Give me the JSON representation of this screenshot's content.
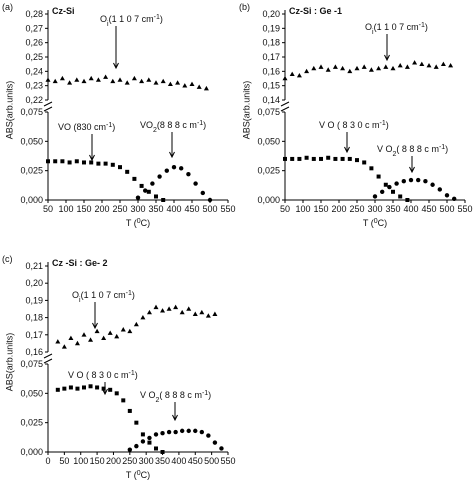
{
  "chart_data": [
    {
      "type": "scatter",
      "panel": "(a)",
      "title": "Cz-Si",
      "ylabel": "ABS(arb.units)",
      "xlabel": [
        {
          "text": "T ("
        },
        {
          "text": "0",
          "style": "sup"
        },
        {
          "text": "C)"
        }
      ],
      "xlim": [
        50,
        550
      ],
      "xticks": [
        50,
        100,
        150,
        200,
        250,
        300,
        350,
        400,
        450,
        500,
        550
      ],
      "ylim_upper": [
        0.22,
        0.28
      ],
      "yticks_upper": [
        {
          "value": 0.22,
          "label": "0,22"
        },
        {
          "value": 0.23,
          "label": "0,23"
        },
        {
          "value": 0.24,
          "label": "0,24"
        },
        {
          "value": 0.25,
          "label": "0,25"
        },
        {
          "value": 0.26,
          "label": "0,26"
        },
        {
          "value": 0.27,
          "label": "0,27"
        },
        {
          "value": 0.28,
          "label": "0,28"
        }
      ],
      "ylim": [
        0,
        0.075
      ],
      "yticks": [
        {
          "value": 0,
          "label": "0,000"
        },
        {
          "value": 0.025,
          "label": "0,025"
        },
        {
          "value": 0.05,
          "label": "0,050"
        },
        {
          "value": 0.075,
          "label": "0,075"
        }
      ],
      "series": [
        {
          "label": [
            {
              "text": "O"
            },
            {
              "text": "i",
              "style": "sub"
            },
            {
              "text": "(1 1 0 7 cm"
            },
            {
              "text": "-1",
              "style": "sup"
            },
            {
              "text": ")"
            }
          ],
          "marker": "triangle",
          "panel": "upper",
          "color": "#000000",
          "x": [
            50,
            70,
            90,
            110,
            130,
            150,
            170,
            190,
            210,
            230,
            250,
            270,
            290,
            310,
            330,
            350,
            370,
            390,
            410,
            430,
            450,
            470,
            490
          ],
          "values": [
            0.234,
            0.233,
            0.235,
            0.232,
            0.234,
            0.233,
            0.235,
            0.234,
            0.236,
            0.233,
            0.234,
            0.232,
            0.235,
            0.233,
            0.234,
            0.232,
            0.233,
            0.231,
            0.232,
            0.23,
            0.231,
            0.229,
            0.228
          ]
        },
        {
          "label": [
            {
              "text": "VO (830 cm"
            },
            {
              "text": "-1",
              "style": "sup"
            },
            {
              "text": ")"
            }
          ],
          "marker": "square",
          "panel": "lower",
          "color": "#000000",
          "x": [
            50,
            70,
            90,
            110,
            130,
            150,
            170,
            190,
            210,
            230,
            250,
            270,
            290,
            310,
            330,
            350,
            370
          ],
          "values": [
            0.033,
            0.033,
            0.033,
            0.032,
            0.033,
            0.032,
            0.032,
            0.031,
            0.031,
            0.03,
            0.028,
            0.024,
            0.018,
            0.012,
            0.007,
            0.003,
            0
          ]
        },
        {
          "label": [
            {
              "text": "VO"
            },
            {
              "text": "2",
              "style": "sub"
            },
            {
              "text": "(8 8 8 c m"
            },
            {
              "text": "-1",
              "style": "sup"
            },
            {
              "text": ")"
            }
          ],
          "marker": "circle",
          "panel": "lower",
          "color": "#000000",
          "x": [
            300,
            320,
            340,
            360,
            380,
            400,
            420,
            440,
            460,
            480,
            500
          ],
          "values": [
            0.002,
            0.008,
            0.014,
            0.02,
            0.025,
            0.028,
            0.027,
            0.022,
            0.014,
            0.006,
            0
          ]
        }
      ]
    },
    {
      "type": "scatter",
      "panel": "(b)",
      "title": "Cz-Si : Ge -1",
      "ylabel": "ABS(arb.units)",
      "xlabel": [
        {
          "text": "T ("
        },
        {
          "text": "0",
          "style": "sup"
        },
        {
          "text": "C)"
        }
      ],
      "xlim": [
        50,
        550
      ],
      "xticks": [
        50,
        100,
        150,
        200,
        250,
        300,
        350,
        400,
        450,
        500,
        550
      ],
      "ylim_upper": [
        0.14,
        0.2
      ],
      "yticks_upper": [
        {
          "value": 0.14,
          "label": "0,14"
        },
        {
          "value": 0.15,
          "label": "0,15"
        },
        {
          "value": 0.16,
          "label": "0,16"
        },
        {
          "value": 0.17,
          "label": "0,17"
        },
        {
          "value": 0.18,
          "label": "0,18"
        },
        {
          "value": 0.19,
          "label": "0,19"
        },
        {
          "value": 0.2,
          "label": "0,20"
        }
      ],
      "ylim": [
        0,
        0.075
      ],
      "yticks": [
        {
          "value": 0,
          "label": "0,000"
        },
        {
          "value": 0.025,
          "label": "0,025"
        },
        {
          "value": 0.05,
          "label": "0,050"
        },
        {
          "value": 0.075,
          "label": "0,075"
        }
      ],
      "series": [
        {
          "label": [
            {
              "text": "O"
            },
            {
              "text": "i",
              "style": "sub"
            },
            {
              "text": "(1 1 0 7 cm"
            },
            {
              "text": "-1",
              "style": "sup"
            },
            {
              "text": ")"
            }
          ],
          "marker": "triangle",
          "panel": "upper",
          "color": "#000000",
          "x": [
            50,
            70,
            90,
            110,
            130,
            150,
            170,
            190,
            210,
            230,
            250,
            270,
            290,
            310,
            330,
            350,
            370,
            390,
            410,
            430,
            450,
            470,
            490,
            510
          ],
          "values": [
            0.155,
            0.158,
            0.157,
            0.16,
            0.162,
            0.163,
            0.161,
            0.163,
            0.162,
            0.16,
            0.162,
            0.163,
            0.161,
            0.162,
            0.163,
            0.162,
            0.164,
            0.163,
            0.166,
            0.165,
            0.164,
            0.163,
            0.165,
            0.164
          ]
        },
        {
          "label": [
            {
              "text": "V O ( 8 3 0 c m"
            },
            {
              "text": "-1",
              "style": "sup"
            },
            {
              "text": ")"
            }
          ],
          "marker": "square",
          "panel": "lower",
          "color": "#000000",
          "x": [
            50,
            70,
            90,
            110,
            130,
            150,
            170,
            190,
            210,
            230,
            250,
            270,
            290,
            310,
            330,
            350,
            370,
            390
          ],
          "values": [
            0.035,
            0.035,
            0.035,
            0.036,
            0.035,
            0.035,
            0.036,
            0.035,
            0.035,
            0.035,
            0.034,
            0.032,
            0.027,
            0.02,
            0.013,
            0.007,
            0.003,
            0
          ]
        },
        {
          "label": [
            {
              "text": "V O"
            },
            {
              "text": "2",
              "style": "sub"
            },
            {
              "text": "( 8 8 8 c m"
            },
            {
              "text": "-1",
              "style": "sup"
            },
            {
              "text": ")"
            }
          ],
          "marker": "circle",
          "panel": "lower",
          "color": "#000000",
          "x": [
            300,
            320,
            340,
            360,
            380,
            400,
            420,
            440,
            460,
            480,
            500,
            520
          ],
          "values": [
            0.003,
            0.007,
            0.011,
            0.014,
            0.016,
            0.017,
            0.017,
            0.016,
            0.013,
            0.009,
            0.004,
            0.001
          ]
        }
      ]
    },
    {
      "type": "scatter",
      "panel": "(c)",
      "title": "Cz -Si : Ge- 2",
      "ylabel": "ABS(arb.units)",
      "xlabel": [
        {
          "text": "T ("
        },
        {
          "text": "0",
          "style": "sup"
        },
        {
          "text": "C)"
        }
      ],
      "xlim": [
        0,
        550
      ],
      "xticks": [
        0,
        50,
        100,
        150,
        200,
        250,
        300,
        350,
        400,
        450,
        500,
        550
      ],
      "ylim_upper": [
        0.16,
        0.21
      ],
      "yticks_upper": [
        {
          "value": 0.16,
          "label": "0,16"
        },
        {
          "value": 0.17,
          "label": "0,17"
        },
        {
          "value": 0.18,
          "label": "0,18"
        },
        {
          "value": 0.19,
          "label": "0,19"
        },
        {
          "value": 0.2,
          "label": "0,20"
        },
        {
          "value": 0.21,
          "label": "0,21"
        }
      ],
      "ylim": [
        0,
        0.075
      ],
      "yticks": [
        {
          "value": 0,
          "label": "0,000"
        },
        {
          "value": 0.025,
          "label": "0,025"
        },
        {
          "value": 0.05,
          "label": "0,050"
        },
        {
          "value": 0.075,
          "label": "0,075"
        }
      ],
      "series": [
        {
          "label": [
            {
              "text": "O"
            },
            {
              "text": "i",
              "style": "sub"
            },
            {
              "text": "(1 1 0 7 cm"
            },
            {
              "text": "-1",
              "style": "sup"
            },
            {
              "text": ")"
            }
          ],
          "marker": "triangle",
          "panel": "upper",
          "color": "#000000",
          "x": [
            30,
            50,
            70,
            90,
            110,
            130,
            150,
            170,
            190,
            210,
            230,
            250,
            270,
            290,
            310,
            330,
            350,
            370,
            390,
            410,
            430,
            450,
            470,
            490,
            510
          ],
          "values": [
            0.166,
            0.163,
            0.168,
            0.165,
            0.17,
            0.167,
            0.172,
            0.168,
            0.171,
            0.169,
            0.173,
            0.172,
            0.176,
            0.18,
            0.183,
            0.186,
            0.184,
            0.185,
            0.186,
            0.183,
            0.185,
            0.182,
            0.183,
            0.181,
            0.182
          ]
        },
        {
          "label": [
            {
              "text": "V O ( 8 3 0 c m"
            },
            {
              "text": "-1",
              "style": "sup"
            },
            {
              "text": ")"
            }
          ],
          "marker": "square",
          "panel": "lower",
          "color": "#000000",
          "x": [
            30,
            50,
            70,
            90,
            110,
            130,
            150,
            170,
            190,
            210,
            230,
            250,
            270,
            290,
            310,
            330,
            350
          ],
          "values": [
            0.053,
            0.054,
            0.055,
            0.054,
            0.055,
            0.056,
            0.055,
            0.054,
            0.053,
            0.05,
            0.044,
            0.035,
            0.025,
            0.015,
            0.008,
            0.003,
            0
          ]
        },
        {
          "label": [
            {
              "text": "V O"
            },
            {
              "text": "2",
              "style": "sub"
            },
            {
              "text": "( 8 8 8 c m"
            },
            {
              "text": "-1",
              "style": "sup"
            },
            {
              "text": ")"
            }
          ],
          "marker": "circle",
          "panel": "lower",
          "color": "#000000",
          "x": [
            250,
            270,
            290,
            310,
            330,
            350,
            370,
            390,
            410,
            430,
            450,
            470,
            490,
            510,
            530
          ],
          "values": [
            0.002,
            0.005,
            0.009,
            0.012,
            0.015,
            0.016,
            0.017,
            0.017,
            0.018,
            0.018,
            0.018,
            0.017,
            0.014,
            0.008,
            0.003
          ]
        }
      ]
    }
  ]
}
